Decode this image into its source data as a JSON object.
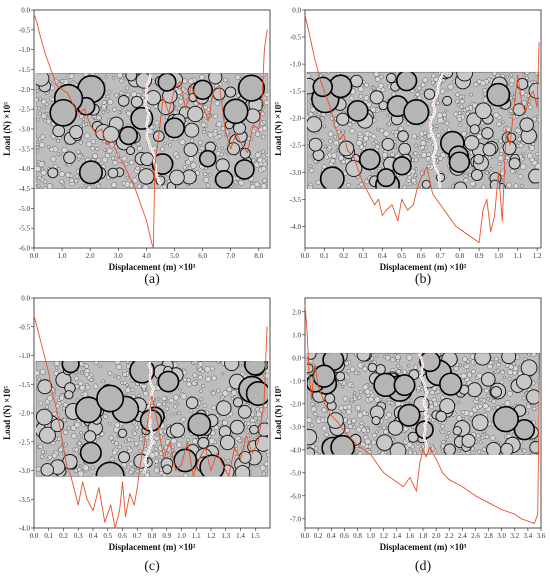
{
  "chart_data": [
    {
      "id": "a",
      "type": "line",
      "panel_label": "(a)",
      "xlabel": "Displacement (m)",
      "xscale_label": "×10³",
      "ylabel": "Load (N) ×10⁵",
      "xlim": [
        0,
        8.4
      ],
      "ylim": [
        -6.0,
        0.0
      ],
      "xticks": [
        0.0,
        1.0,
        2.0,
        3.0,
        4.0,
        5.0,
        6.0,
        7.0,
        8.0
      ],
      "yticks": [
        0.0,
        -0.5,
        -1.0,
        -1.5,
        -2.0,
        -2.5,
        -3.0,
        -3.5,
        -4.0,
        -4.5,
        -5.0,
        -5.5,
        -6.0
      ],
      "line_color": "#e8502a",
      "specimen": {
        "y_top": -1.6,
        "y_bottom": -4.5,
        "crack_x": 4.2
      },
      "x": [
        0.0,
        0.1,
        0.2,
        0.4,
        0.6,
        0.8,
        1.0,
        1.2,
        1.4,
        1.6,
        1.8,
        2.0,
        2.2,
        2.4,
        2.6,
        2.8,
        3.0,
        3.2,
        3.4,
        3.6,
        3.8,
        4.0,
        4.1,
        4.2,
        4.25,
        4.3,
        4.4,
        4.6,
        4.8,
        5.0,
        5.2,
        5.4,
        5.6,
        5.8,
        6.0,
        6.2,
        6.4,
        6.6,
        6.8,
        7.0,
        7.2,
        7.4,
        7.6,
        7.8,
        8.0,
        8.1,
        8.2,
        8.3
      ],
      "y": [
        -0.1,
        -0.3,
        -0.6,
        -1.1,
        -1.5,
        -1.9,
        -2.0,
        -2.1,
        -2.4,
        -2.6,
        -2.5,
        -2.9,
        -3.1,
        -3.0,
        -3.4,
        -3.3,
        -3.7,
        -3.9,
        -4.2,
        -4.5,
        -4.9,
        -5.3,
        -5.6,
        -5.9,
        -6.0,
        -3.9,
        -3.4,
        -2.2,
        -2.6,
        -2.0,
        -1.8,
        -2.5,
        -1.9,
        -2.3,
        -2.4,
        -2.8,
        -2.0,
        -1.9,
        -3.0,
        -3.5,
        -3.1,
        -3.4,
        -3.6,
        -2.9,
        -3.0,
        -2.5,
        -1.0,
        -0.5
      ]
    },
    {
      "id": "b",
      "type": "line",
      "panel_label": "(b)",
      "xlabel": "Displacement (m)",
      "xscale_label": "×10²",
      "ylabel": "Load (N) ×10⁵",
      "xlim": [
        0,
        1.22
      ],
      "ylim": [
        -4.4,
        0.0
      ],
      "xticks": [
        0.0,
        0.1,
        0.2,
        0.3,
        0.4,
        0.5,
        0.6,
        0.7,
        0.8,
        0.9,
        1.0,
        1.1,
        1.2
      ],
      "yticks": [
        0.0,
        -0.5,
        -1.0,
        -1.5,
        -2.0,
        -2.5,
        -3.0,
        -3.5,
        -4.0
      ],
      "line_color": "#e8502a",
      "specimen": {
        "y_top": -1.15,
        "y_bottom": -3.3,
        "crack_x": 0.72
      },
      "x": [
        0.0,
        0.02,
        0.05,
        0.08,
        0.1,
        0.13,
        0.16,
        0.18,
        0.2,
        0.22,
        0.25,
        0.28,
        0.3,
        0.33,
        0.36,
        0.38,
        0.4,
        0.42,
        0.45,
        0.48,
        0.5,
        0.53,
        0.56,
        0.58,
        0.6,
        0.63,
        0.66,
        0.7,
        0.74,
        0.78,
        0.82,
        0.86,
        0.9,
        0.92,
        0.94,
        0.96,
        0.98,
        1.0,
        1.02,
        1.04,
        1.06,
        1.08,
        1.1,
        1.12,
        1.14,
        1.16,
        1.18,
        1.2,
        1.21
      ],
      "y": [
        -0.1,
        -0.4,
        -0.9,
        -1.3,
        -1.5,
        -1.8,
        -2.2,
        -2.4,
        -2.3,
        -2.6,
        -2.7,
        -3.0,
        -3.2,
        -3.4,
        -3.6,
        -3.5,
        -3.8,
        -3.7,
        -3.6,
        -3.9,
        -3.5,
        -3.7,
        -3.6,
        -3.3,
        -3.1,
        -2.9,
        -3.4,
        -3.6,
        -3.8,
        -4.0,
        -4.1,
        -4.2,
        -4.3,
        -3.7,
        -3.5,
        -4.1,
        -3.8,
        -3.0,
        -3.9,
        -2.2,
        -2.5,
        -1.8,
        -1.2,
        -1.7,
        -1.9,
        -1.6,
        -1.5,
        -1.8,
        -0.6
      ]
    },
    {
      "id": "c",
      "type": "line",
      "panel_label": "(c)",
      "xlabel": "Displacement (m)",
      "xscale_label": "×10²",
      "ylabel": "Load (N) ×10⁵",
      "xlim": [
        0,
        1.6
      ],
      "ylim": [
        -4.0,
        0.0
      ],
      "xticks": [
        0.0,
        0.1,
        0.2,
        0.3,
        0.4,
        0.5,
        0.6,
        0.7,
        0.8,
        0.9,
        1.0,
        1.1,
        1.2,
        1.3,
        1.4,
        1.5
      ],
      "yticks": [
        0.0,
        -0.5,
        -1.0,
        -1.5,
        -2.0,
        -2.5,
        -3.0,
        -3.5,
        -4.0
      ],
      "line_color": "#e8502a",
      "specimen": {
        "y_top": -1.1,
        "y_bottom": -3.1,
        "crack_x": 0.8
      },
      "x": [
        0.0,
        0.02,
        0.05,
        0.08,
        0.1,
        0.12,
        0.15,
        0.18,
        0.2,
        0.22,
        0.25,
        0.28,
        0.3,
        0.33,
        0.36,
        0.4,
        0.44,
        0.48,
        0.52,
        0.55,
        0.58,
        0.6,
        0.62,
        0.65,
        0.68,
        0.7,
        0.72,
        0.75,
        0.78,
        0.8,
        0.84,
        0.88,
        0.92,
        0.96,
        1.0,
        1.04,
        1.08,
        1.12,
        1.16,
        1.2,
        1.24,
        1.28,
        1.32,
        1.36,
        1.4,
        1.44,
        1.48,
        1.52,
        1.56,
        1.58
      ],
      "y": [
        -0.3,
        -0.5,
        -0.8,
        -1.1,
        -1.3,
        -1.6,
        -1.9,
        -2.3,
        -2.6,
        -2.9,
        -3.1,
        -3.4,
        -3.6,
        -3.2,
        -3.5,
        -3.7,
        -3.3,
        -3.9,
        -3.6,
        -4.0,
        -3.7,
        -3.2,
        -3.8,
        -3.4,
        -3.6,
        -3.3,
        -2.9,
        -2.5,
        -2.0,
        -1.7,
        -2.2,
        -2.8,
        -2.5,
        -3.0,
        -2.9,
        -2.5,
        -3.1,
        -2.8,
        -2.6,
        -3.0,
        -2.7,
        -2.9,
        -3.1,
        -2.6,
        -2.8,
        -2.4,
        -2.7,
        -2.5,
        -1.8,
        -0.5
      ]
    },
    {
      "id": "d",
      "type": "line",
      "panel_label": "(d)",
      "xlabel": "Displacement (m)",
      "xscale_label": "×10³",
      "ylabel": "Load (N) ×10⁵",
      "xlim": [
        0,
        3.6
      ],
      "ylim": [
        -7.4,
        2.6
      ],
      "xticks": [
        0.0,
        0.2,
        0.4,
        0.6,
        0.8,
        1.0,
        1.2,
        1.4,
        1.6,
        1.8,
        2.0,
        2.2,
        2.4,
        2.6,
        2.8,
        3.0,
        3.2,
        3.4,
        3.6
      ],
      "yticks": [
        2.0,
        1.0,
        0.0,
        -1.0,
        -2.0,
        -3.0,
        -4.0,
        -5.0,
        -6.0,
        -7.0
      ],
      "line_color": "#e8502a",
      "specimen": {
        "y_top": 0.2,
        "y_bottom": -4.2,
        "crack_x": 1.75
      },
      "x": [
        0.0,
        0.03,
        0.06,
        0.1,
        0.15,
        0.2,
        0.3,
        0.4,
        0.5,
        0.6,
        0.7,
        0.8,
        0.9,
        1.0,
        1.1,
        1.2,
        1.3,
        1.4,
        1.5,
        1.6,
        1.7,
        1.75,
        1.8,
        1.85,
        1.9,
        2.0,
        2.1,
        2.2,
        2.4,
        2.6,
        2.8,
        3.0,
        3.2,
        3.3,
        3.4,
        3.5,
        3.55,
        3.58
      ],
      "y": [
        2.3,
        1.2,
        -0.5,
        -1.8,
        -0.3,
        -1.2,
        -2.0,
        -2.5,
        -2.8,
        -3.2,
        -3.5,
        -3.8,
        -4.0,
        -4.2,
        -4.6,
        -5.0,
        -5.2,
        -5.4,
        -5.6,
        -5.2,
        -5.8,
        -4.6,
        -4.0,
        -4.3,
        -3.9,
        -4.4,
        -5.0,
        -5.3,
        -5.6,
        -6.0,
        -6.3,
        -6.6,
        -6.8,
        -7.0,
        -7.1,
        -7.2,
        -6.8,
        0.2
      ]
    }
  ]
}
